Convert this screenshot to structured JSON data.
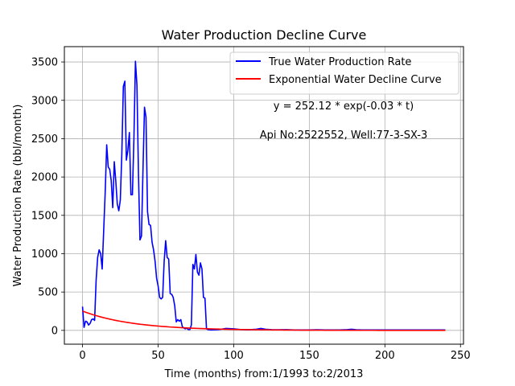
{
  "chart_data": {
    "type": "line",
    "title": "Water Production Decline Curve",
    "xlabel": "Time (months) from:1/1993 to:2/2013",
    "ylabel": "Water Production Rate (bbl/month)",
    "xlim": [
      -12,
      252
    ],
    "ylim": [
      -180,
      3700
    ],
    "xticks": [
      0,
      50,
      100,
      150,
      200,
      250
    ],
    "yticks": [
      0,
      500,
      1000,
      1500,
      2000,
      2500,
      3000,
      3500
    ],
    "grid": true,
    "legend_position": "top-right",
    "annotations": [
      "y = 252.12 * exp(-0.03 * t)",
      "Api No:2522552, Well:77-3-SX-3"
    ],
    "series": [
      {
        "name": "True Water Production Rate",
        "color": "#0000ff",
        "points": [
          [
            0,
            310
          ],
          [
            1,
            40
          ],
          [
            2,
            120
          ],
          [
            3,
            110
          ],
          [
            4,
            70
          ],
          [
            5,
            90
          ],
          [
            6,
            140
          ],
          [
            7,
            150
          ],
          [
            8,
            130
          ],
          [
            9,
            650
          ],
          [
            10,
            950
          ],
          [
            11,
            1050
          ],
          [
            12,
            1000
          ],
          [
            13,
            800
          ],
          [
            14,
            1300
          ],
          [
            15,
            1800
          ],
          [
            16,
            2420
          ],
          [
            17,
            2130
          ],
          [
            18,
            2100
          ],
          [
            19,
            1950
          ],
          [
            20,
            1600
          ],
          [
            21,
            2200
          ],
          [
            22,
            1950
          ],
          [
            23,
            1650
          ],
          [
            24,
            1560
          ],
          [
            25,
            1700
          ],
          [
            26,
            2300
          ],
          [
            27,
            3180
          ],
          [
            28,
            3250
          ],
          [
            29,
            2220
          ],
          [
            30,
            2350
          ],
          [
            31,
            2580
          ],
          [
            32,
            1770
          ],
          [
            33,
            1770
          ],
          [
            34,
            2500
          ],
          [
            35,
            3510
          ],
          [
            36,
            3200
          ],
          [
            37,
            2050
          ],
          [
            38,
            1180
          ],
          [
            39,
            1230
          ],
          [
            40,
            2100
          ],
          [
            41,
            2910
          ],
          [
            42,
            2780
          ],
          [
            43,
            1550
          ],
          [
            44,
            1380
          ],
          [
            45,
            1370
          ],
          [
            46,
            1150
          ],
          [
            47,
            1050
          ],
          [
            48,
            900
          ],
          [
            49,
            680
          ],
          [
            50,
            580
          ],
          [
            51,
            430
          ],
          [
            52,
            410
          ],
          [
            53,
            430
          ],
          [
            54,
            900
          ],
          [
            55,
            1170
          ],
          [
            56,
            950
          ],
          [
            57,
            930
          ],
          [
            58,
            480
          ],
          [
            59,
            470
          ],
          [
            60,
            430
          ],
          [
            61,
            320
          ],
          [
            62,
            110
          ],
          [
            63,
            140
          ],
          [
            64,
            120
          ],
          [
            65,
            140
          ],
          [
            66,
            50
          ],
          [
            67,
            30
          ],
          [
            68,
            20
          ],
          [
            69,
            30
          ],
          [
            70,
            10
          ],
          [
            71,
            10
          ],
          [
            72,
            70
          ],
          [
            73,
            860
          ],
          [
            74,
            800
          ],
          [
            75,
            990
          ],
          [
            76,
            760
          ],
          [
            77,
            720
          ],
          [
            78,
            880
          ],
          [
            79,
            800
          ],
          [
            80,
            430
          ],
          [
            81,
            420
          ],
          [
            82,
            20
          ],
          [
            83,
            10
          ],
          [
            85,
            5
          ],
          [
            90,
            10
          ],
          [
            95,
            25
          ],
          [
            100,
            20
          ],
          [
            105,
            10
          ],
          [
            110,
            8
          ],
          [
            115,
            15
          ],
          [
            118,
            25
          ],
          [
            121,
            15
          ],
          [
            125,
            10
          ],
          [
            130,
            8
          ],
          [
            135,
            10
          ],
          [
            140,
            5
          ],
          [
            145,
            5
          ],
          [
            150,
            5
          ],
          [
            155,
            8
          ],
          [
            160,
            5
          ],
          [
            165,
            5
          ],
          [
            170,
            5
          ],
          [
            175,
            10
          ],
          [
            178,
            15
          ],
          [
            181,
            8
          ],
          [
            185,
            5
          ],
          [
            190,
            5
          ],
          [
            195,
            5
          ],
          [
            200,
            5
          ],
          [
            210,
            5
          ],
          [
            220,
            5
          ],
          [
            230,
            5
          ],
          [
            240,
            5
          ]
        ]
      },
      {
        "name": "Exponential Water Decline Curve",
        "color": "#ff0000",
        "model": {
          "a": 252.12,
          "b": -0.03,
          "t_start": 0,
          "t_end": 240
        }
      }
    ]
  }
}
